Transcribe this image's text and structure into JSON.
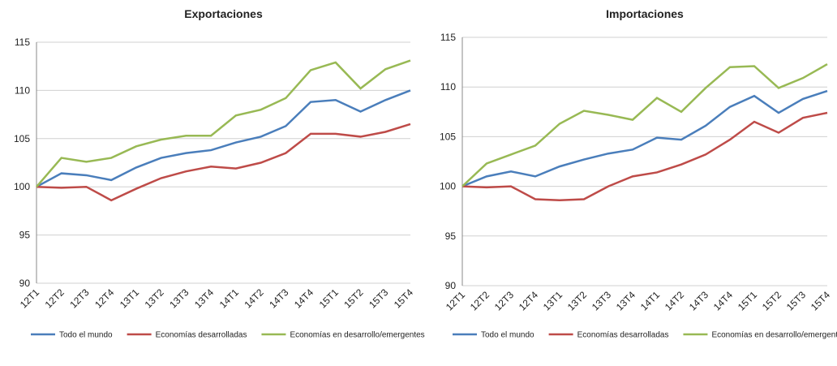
{
  "chart_data": [
    {
      "type": "line",
      "title": "Exportaciones",
      "categories": [
        "12T1",
        "12T2",
        "12T3",
        "12T4",
        "13T1",
        "13T2",
        "13T3",
        "13T4",
        "14T1",
        "14T2",
        "14T3",
        "14T4",
        "15T1",
        "15T2",
        "15T3",
        "15T4"
      ],
      "ylim": [
        90,
        115
      ],
      "yticks": [
        90,
        95,
        100,
        105,
        110,
        115
      ],
      "grid": true,
      "legend": "bottom",
      "series": [
        {
          "name": "Todo el mundo",
          "color": "#4a7ebb",
          "values": [
            100,
            101.4,
            101.2,
            100.7,
            102.0,
            103.0,
            103.5,
            103.8,
            104.6,
            105.2,
            106.3,
            108.8,
            109.0,
            107.8,
            109.0,
            110.0
          ]
        },
        {
          "name": "Economías desarrolladas",
          "color": "#be4b48",
          "values": [
            100,
            99.9,
            100.0,
            98.6,
            99.8,
            100.9,
            101.6,
            102.1,
            101.9,
            102.5,
            103.5,
            105.5,
            105.5,
            105.2,
            105.7,
            106.5
          ]
        },
        {
          "name": "Economías en desarrollo/emergentes",
          "color": "#98b954",
          "values": [
            100,
            103.0,
            102.6,
            103.0,
            104.2,
            104.9,
            105.3,
            105.3,
            107.4,
            108.0,
            109.2,
            112.1,
            112.9,
            110.2,
            112.2,
            113.1
          ]
        }
      ]
    },
    {
      "type": "line",
      "title": "Importaciones",
      "categories": [
        "12T1",
        "12T2",
        "12T3",
        "12T4",
        "13T1",
        "13T2",
        "13T3",
        "13T4",
        "14T1",
        "14T2",
        "14T3",
        "14T4",
        "15T1",
        "15T2",
        "15T3",
        "15T4"
      ],
      "ylim": [
        90,
        115
      ],
      "yticks": [
        90,
        95,
        100,
        105,
        110,
        115
      ],
      "grid": true,
      "legend": "bottom",
      "series": [
        {
          "name": "Todo el mundo",
          "color": "#4a7ebb",
          "values": [
            100,
            101.0,
            101.5,
            101.0,
            102.0,
            102.7,
            103.3,
            103.7,
            104.9,
            104.7,
            106.1,
            108.0,
            109.1,
            107.4,
            108.8,
            109.6
          ]
        },
        {
          "name": "Economías desarrolladas",
          "color": "#be4b48",
          "values": [
            100,
            99.9,
            100.0,
            98.7,
            98.6,
            98.7,
            100.0,
            101.0,
            101.4,
            102.2,
            103.2,
            104.7,
            106.5,
            105.4,
            106.9,
            107.4
          ]
        },
        {
          "name": "Economías en desarrollo/emergentes",
          "color": "#98b954",
          "values": [
            100,
            102.3,
            103.2,
            104.1,
            106.3,
            107.6,
            107.2,
            106.7,
            108.9,
            107.5,
            109.9,
            112.0,
            112.1,
            109.9,
            110.9,
            112.3
          ]
        }
      ]
    }
  ]
}
